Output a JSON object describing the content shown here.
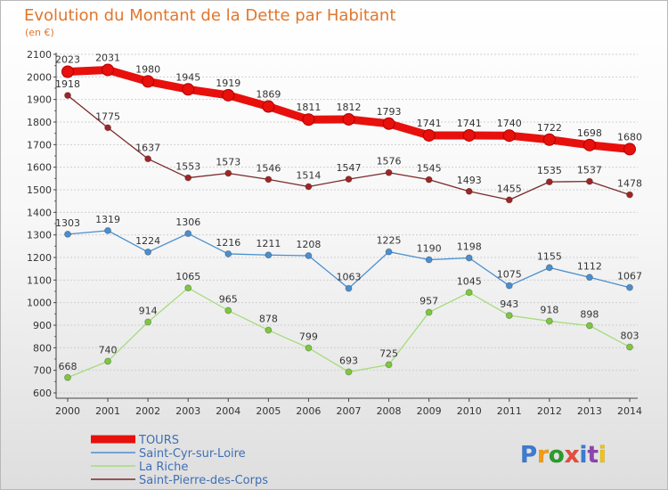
{
  "header": {
    "title": "Evolution du Montant de la Dette par Habitant",
    "unit": "(en €)"
  },
  "brand": {
    "logo_text": "Proxiti",
    "colors": [
      "#3a7bd5",
      "#f39c12",
      "#2a9d2a",
      "#e74c3c",
      "#3a7bd5",
      "#8e44ad",
      "#f1c40f"
    ]
  },
  "chart_data": {
    "type": "line",
    "title": "Evolution du Montant de la Dette par Habitant",
    "subtitle": "(en €)",
    "xlabel": "",
    "ylabel": "",
    "x": [
      "2000",
      "2001",
      "2002",
      "2003",
      "2004",
      "2005",
      "2006",
      "2007",
      "2008",
      "2009",
      "2010",
      "2011",
      "2012",
      "2013",
      "2014"
    ],
    "ylim": [
      600,
      2100
    ],
    "yticks": [
      600,
      700,
      800,
      900,
      1000,
      1100,
      1200,
      1300,
      1400,
      1500,
      1600,
      1700,
      1800,
      1900,
      2000,
      2100
    ],
    "grid": "horizontal-dashed",
    "legend_position": "bottom-left",
    "series": [
      {
        "name": "TOURS",
        "color": "#e8100c",
        "line_color": "#e8100c",
        "marker_color": "#e8100c",
        "thick": true,
        "values": [
          2023,
          2031,
          1980,
          1945,
          1919,
          1869,
          1811,
          1812,
          1793,
          1741,
          1741,
          1740,
          1722,
          1698,
          1680
        ]
      },
      {
        "name": "Saint-Cyr-sur-Loire",
        "color": "#4a8fd0",
        "line_color": "#4a8fd0",
        "marker_color": "#4a8fd0",
        "thick": false,
        "values": [
          1303,
          1319,
          1224,
          1306,
          1216,
          1211,
          1208,
          1063,
          1225,
          1190,
          1198,
          1075,
          1155,
          1112,
          1067
        ]
      },
      {
        "name": "La Riche",
        "color": "#a5dc7a",
        "line_color": "#a5dc7a",
        "marker_color": "#7dc93e",
        "thick": false,
        "values": [
          668,
          740,
          914,
          1065,
          965,
          878,
          799,
          693,
          725,
          957,
          1045,
          943,
          918,
          898,
          803
        ]
      },
      {
        "name": "Saint-Pierre-des-Corps",
        "color": "#7b2a2a",
        "line_color": "#7b2a2a",
        "marker_color": "#a02525",
        "thick": false,
        "values": [
          1918,
          1775,
          1637,
          1553,
          1573,
          1546,
          1514,
          1547,
          1576,
          1545,
          1493,
          1455,
          1535,
          1537,
          1478
        ]
      }
    ]
  }
}
